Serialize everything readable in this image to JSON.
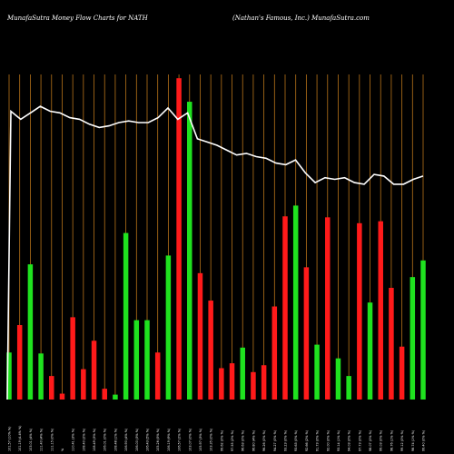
{
  "header": {
    "left": "MunafaSutra  Money Flow  Charts for NATH",
    "right": "(Nathan's Famous,  Inc.) MunafaSutra.com"
  },
  "colors": {
    "background": "#000000",
    "grid": "#b8741a",
    "up": "#1fe21f",
    "down": "#ff1a1a",
    "line": "#ffffff",
    "text": "#ffffff"
  },
  "chart_data": {
    "type": "bar",
    "title": "MunafaSutra  Money Flow  Charts for NATH",
    "subtitle": "(Nathan's Famous,  Inc.) MunafaSutra.com",
    "grid": true,
    "bars": [
      {
        "label": "101.57 (10% %)",
        "value": 48,
        "color": "green"
      },
      {
        "label": "101.19 (4.4% %)",
        "value": 76,
        "color": "red"
      },
      {
        "label": "103.01 (4% %)",
        "value": 138,
        "color": "green"
      },
      {
        "label": "111.40 (4% %)",
        "value": 47,
        "color": "green"
      },
      {
        "label": "111.15 (0% %)",
        "value": 24,
        "color": "red"
      },
      {
        "label": "%",
        "value": 6,
        "color": "red"
      },
      {
        "label": "110.41 (3% %)",
        "value": 84,
        "color": "red"
      },
      {
        "label": "108.40 (2% %)",
        "value": 31,
        "color": "red"
      },
      {
        "label": "108.49 (3% %)",
        "value": 60,
        "color": "red"
      },
      {
        "label": "106.01 (0% %)",
        "value": 11,
        "color": "red"
      },
      {
        "label": "108.48 (1% %)",
        "value": 5,
        "color": "green"
      },
      {
        "label": "106.90 (4% %)",
        "value": 170,
        "color": "green"
      },
      {
        "label": "106.00 (3% %)",
        "value": 81,
        "color": "green"
      },
      {
        "label": "106.43 (5% %)",
        "value": 81,
        "color": "green"
      },
      {
        "label": "105.26 (5% %)",
        "value": 48,
        "color": "red"
      },
      {
        "label": "106.19 (9% %)",
        "value": 147,
        "color": "green"
      },
      {
        "label": "106.57 (2% %)",
        "value": 328,
        "color": "red"
      },
      {
        "label": "103.07 (0% %)",
        "value": 304,
        "color": "green"
      },
      {
        "label": "105.97 (3% %)",
        "value": 129,
        "color": "red"
      },
      {
        "label": "103.35 (0% %)",
        "value": 101,
        "color": "red"
      },
      {
        "label": "99.62 (0% %)",
        "value": 32,
        "color": "red"
      },
      {
        "label": "97.55 (2% %)",
        "value": 37,
        "color": "red"
      },
      {
        "label": "96.63 (0% %)",
        "value": 53,
        "color": "green"
      },
      {
        "label": "96.80 (4% %)",
        "value": 28,
        "color": "red"
      },
      {
        "label": "96.26 (0% %)",
        "value": 35,
        "color": "red"
      },
      {
        "label": "94.27 (0% %)",
        "value": 95,
        "color": "red"
      },
      {
        "label": "93.23 (0% %)",
        "value": 187,
        "color": "red"
      },
      {
        "label": "93.63 (0% %)",
        "value": 198,
        "color": "green"
      },
      {
        "label": "92.66 (2% %)",
        "value": 135,
        "color": "red"
      },
      {
        "label": "91.73 (0% %)",
        "value": 56,
        "color": "green"
      },
      {
        "label": "92.00 (0% %)",
        "value": 186,
        "color": "red"
      },
      {
        "label": "93.14 (1% %)",
        "value": 42,
        "color": "green"
      },
      {
        "label": "94.03 (0% %)",
        "value": 24,
        "color": "green"
      },
      {
        "label": "97.73 (0% %)",
        "value": 180,
        "color": "red"
      },
      {
        "label": "98.07 (0% %)",
        "value": 99,
        "color": "green"
      },
      {
        "label": "99.03 (0% %)",
        "value": 182,
        "color": "red"
      },
      {
        "label": "98.76 (1% %)",
        "value": 114,
        "color": "red"
      },
      {
        "label": "99.12 (0% %)",
        "value": 54,
        "color": "red"
      },
      {
        "label": "98.74 (1% %)",
        "value": 125,
        "color": "green"
      },
      {
        "label": "99.40 (0% %)",
        "value": 142,
        "color": "green"
      }
    ],
    "price_line": [
      114.5,
      112,
      114,
      116,
      114.5,
      114,
      112.5,
      112,
      110.5,
      109.5,
      110,
      111,
      111.5,
      111,
      111,
      112.5,
      115.5,
      112,
      114,
      106,
      105,
      104,
      102.5,
      101,
      101.5,
      100.5,
      100,
      98.5,
      98,
      99.5,
      95.5,
      92.5,
      94,
      93.5,
      94,
      92.5,
      92,
      95,
      94.5,
      92,
      92,
      93.5,
      94.5
    ],
    "price_start": 74,
    "ylim": [
      0,
      330
    ]
  }
}
